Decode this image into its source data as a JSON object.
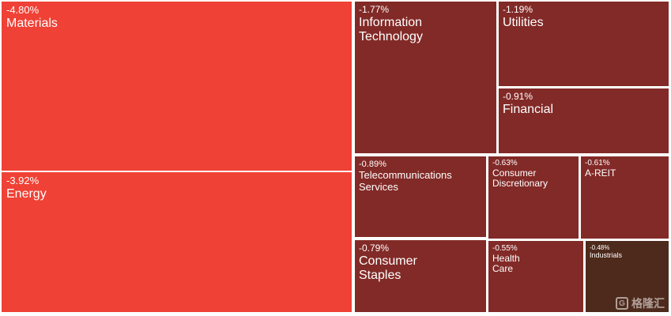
{
  "chart_data": {
    "type": "treemap",
    "title": "",
    "sectors": [
      {
        "name": "Materials",
        "change": "-4.80%",
        "value": -4.8,
        "color": "#ef4135"
      },
      {
        "name": "Energy",
        "change": "-3.92%",
        "value": -3.92,
        "color": "#ef4135"
      },
      {
        "name": "Information\nTechnology",
        "change": "-1.77%",
        "value": -1.77,
        "color": "#822a27"
      },
      {
        "name": "Utilities",
        "change": "-1.19%",
        "value": -1.19,
        "color": "#822a27"
      },
      {
        "name": "Financial",
        "change": "-0.91%",
        "value": -0.91,
        "color": "#822a27"
      },
      {
        "name": "Telecommunications\nServices",
        "change": "-0.89%",
        "value": -0.89,
        "color": "#822a27"
      },
      {
        "name": "Consumer\nDiscretionary",
        "change": "-0.63%",
        "value": -0.63,
        "color": "#822a27"
      },
      {
        "name": "A-REIT",
        "change": "-0.61%",
        "value": -0.61,
        "color": "#822a27"
      },
      {
        "name": "Consumer\nStaples",
        "change": "-0.79%",
        "value": -0.79,
        "color": "#822a27"
      },
      {
        "name": "Health\nCare",
        "change": "-0.55%",
        "value": -0.55,
        "color": "#822a27"
      },
      {
        "name": "Industrials",
        "change": "-0.48%",
        "value": -0.48,
        "color": "#4e2a1c"
      }
    ]
  },
  "watermark": {
    "text": "格隆汇",
    "icon": "gelonghui-logo-icon"
  }
}
